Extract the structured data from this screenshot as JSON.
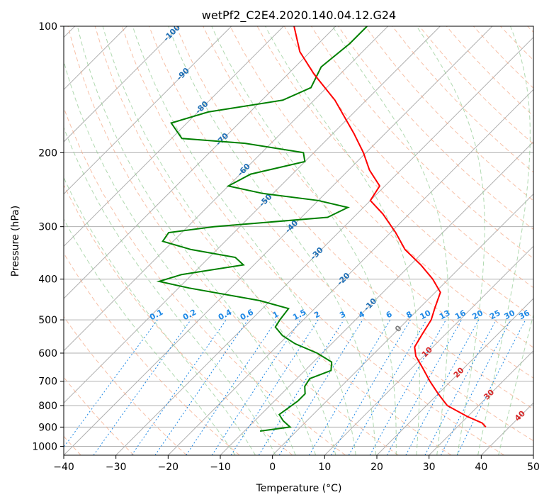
{
  "chart_data": {
    "type": "skew-t",
    "title": "wetPf2_C2E4.2020.140.04.12.G24",
    "xlabel": "Temperature (°C)",
    "ylabel": "Pressure (hPa)",
    "xlim": [
      -40,
      50
    ],
    "ylim": [
      1050,
      100
    ],
    "x_ticks": [
      "−40",
      "−30",
      "−20",
      "−10",
      "0",
      "10",
      "20",
      "30",
      "40",
      "50"
    ],
    "y_ticks": [
      "100",
      "200",
      "300",
      "400",
      "500",
      "600",
      "700",
      "800",
      "900",
      "1000"
    ],
    "colors": {
      "temperature": "#ff0000",
      "dewpoint": "#008000",
      "isotherm": "#b0b0b0",
      "dry_adiabat": "#f4a582",
      "moist_adiabat": "#8fc98f",
      "mixing_ratio": "#1e88e5",
      "isotherm_label": "#1f6fb5",
      "temp_label": "#d62728",
      "zero_label": "#808080"
    },
    "isotherm_labels": [
      "-100",
      "-90",
      "-80",
      "-70",
      "-60",
      "-50",
      "-40",
      "-30",
      "-20",
      "-10",
      "0",
      "10",
      "20",
      "30",
      "40"
    ],
    "mixing_ratio_labels": [
      "0.1",
      "0.2",
      "0.4",
      "0.6",
      "1",
      "1.5",
      "2",
      "3",
      "4",
      "6",
      "8",
      "10",
      "13",
      "16",
      "20",
      "25",
      "30",
      "36"
    ],
    "series": [
      {
        "name": "Temperature",
        "points": [
          [
            900,
            35.5
          ],
          [
            880,
            34.0
          ],
          [
            850,
            30.0
          ],
          [
            800,
            24.0
          ],
          [
            750,
            20.0
          ],
          [
            700,
            16.0
          ],
          [
            650,
            12.0
          ],
          [
            610,
            8.5
          ],
          [
            580,
            6.5
          ],
          [
            540,
            5.5
          ],
          [
            500,
            4.5
          ],
          [
            470,
            3.0
          ],
          [
            430,
            1.0
          ],
          [
            400,
            -3.0
          ],
          [
            370,
            -8.0
          ],
          [
            340,
            -14.0
          ],
          [
            310,
            -19.0
          ],
          [
            280,
            -25.0
          ],
          [
            260,
            -30.0
          ],
          [
            240,
            -31.0
          ],
          [
            220,
            -36.0
          ],
          [
            200,
            -40.5
          ],
          [
            180,
            -46.0
          ],
          [
            150,
            -56.0
          ],
          [
            130,
            -65.0
          ],
          [
            115,
            -72.0
          ],
          [
            100,
            -78.0
          ]
        ]
      },
      {
        "name": "Dewpoint",
        "points": [
          [
            920,
            -7.0
          ],
          [
            900,
            -2.0
          ],
          [
            870,
            -4.5
          ],
          [
            840,
            -6.5
          ],
          [
            810,
            -6.0
          ],
          [
            780,
            -5.5
          ],
          [
            750,
            -5.5
          ],
          [
            720,
            -7.0
          ],
          [
            690,
            -7.5
          ],
          [
            660,
            -5.0
          ],
          [
            630,
            -6.5
          ],
          [
            600,
            -11.0
          ],
          [
            570,
            -17.0
          ],
          [
            545,
            -21.0
          ],
          [
            520,
            -24.0
          ],
          [
            500,
            -24.5
          ],
          [
            470,
            -25.0
          ],
          [
            450,
            -32.0
          ],
          [
            420,
            -48.0
          ],
          [
            405,
            -55.0
          ],
          [
            390,
            -52.0
          ],
          [
            370,
            -42.0
          ],
          [
            355,
            -45.0
          ],
          [
            340,
            -55.0
          ],
          [
            325,
            -62.0
          ],
          [
            310,
            -62.5
          ],
          [
            300,
            -55.0
          ],
          [
            285,
            -35.0
          ],
          [
            270,
            -33.0
          ],
          [
            260,
            -40.0
          ],
          [
            250,
            -52.0
          ],
          [
            240,
            -60.0
          ],
          [
            225,
            -58.0
          ],
          [
            210,
            -50.0
          ],
          [
            200,
            -52.0
          ],
          [
            190,
            -65.0
          ],
          [
            185,
            -78.0
          ],
          [
            170,
            -83.0
          ],
          [
            160,
            -78.0
          ],
          [
            150,
            -66.0
          ],
          [
            140,
            -63.0
          ],
          [
            125,
            -65.0
          ],
          [
            110,
            -64.0
          ],
          [
            100,
            -64.0
          ]
        ]
      }
    ]
  }
}
